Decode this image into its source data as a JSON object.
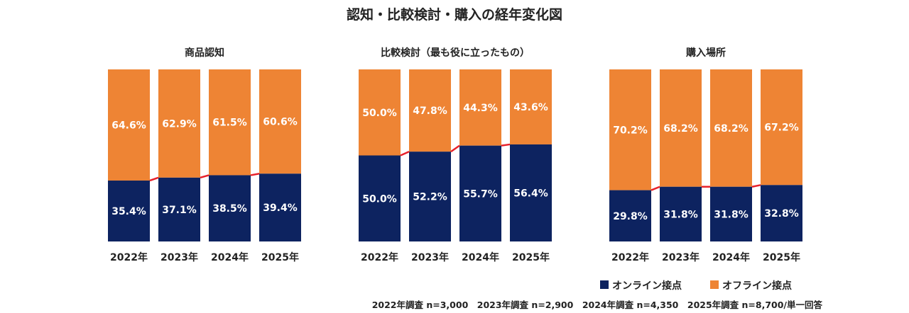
{
  "chart_data": {
    "type": "bar",
    "stacked": true,
    "percent_stacked": true,
    "title": "認知・比較検討・購入の経年変化図",
    "legend": {
      "placement": "bottom-right",
      "items": [
        {
          "name": "オンライン接点",
          "color": "#0d2360"
        },
        {
          "name": "オフライン接点",
          "color": "#ee8434"
        }
      ]
    },
    "connector_color": "#e8202a",
    "footnote": "2022年調査 n=3,000　2023年調査 n=2,900　2024年調査 n=4,350　2025年調査 n=8,700/単一回答",
    "panels": [
      {
        "title": "商品認知",
        "categories": [
          "2022年",
          "2023年",
          "2024年",
          "2025年"
        ],
        "series": [
          {
            "name": "オンライン接点",
            "values": [
              35.4,
              37.1,
              38.5,
              39.4
            ],
            "labels": [
              "35.4%",
              "37.1%",
              "38.5%",
              "39.4%"
            ]
          },
          {
            "name": "オフライン接点",
            "values": [
              64.6,
              62.9,
              61.5,
              60.6
            ],
            "labels": [
              "64.6%",
              "62.9%",
              "61.5%",
              "60.6%"
            ]
          }
        ]
      },
      {
        "title": "比較検討（最も役に立ったもの）",
        "categories": [
          "2022年",
          "2023年",
          "2024年",
          "2025年"
        ],
        "series": [
          {
            "name": "オンライン接点",
            "values": [
              50.0,
              52.2,
              55.7,
              56.4
            ],
            "labels": [
              "50.0%",
              "52.2%",
              "55.7%",
              "56.4%"
            ]
          },
          {
            "name": "オフライン接点",
            "values": [
              50.0,
              47.8,
              44.3,
              43.6
            ],
            "labels": [
              "50.0%",
              "47.8%",
              "44.3%",
              "43.6%"
            ]
          }
        ]
      },
      {
        "title": "購入場所",
        "categories": [
          "2022年",
          "2023年",
          "2024年",
          "2025年"
        ],
        "series": [
          {
            "name": "オンライン接点",
            "values": [
              29.8,
              31.8,
              31.8,
              32.8
            ],
            "labels": [
              "29.8%",
              "31.8%",
              "31.8%",
              "32.8%"
            ]
          },
          {
            "name": "オフライン接点",
            "values": [
              70.2,
              68.2,
              68.2,
              67.2
            ],
            "labels": [
              "70.2%",
              "68.2%",
              "68.2%",
              "67.2%"
            ]
          }
        ]
      }
    ]
  }
}
